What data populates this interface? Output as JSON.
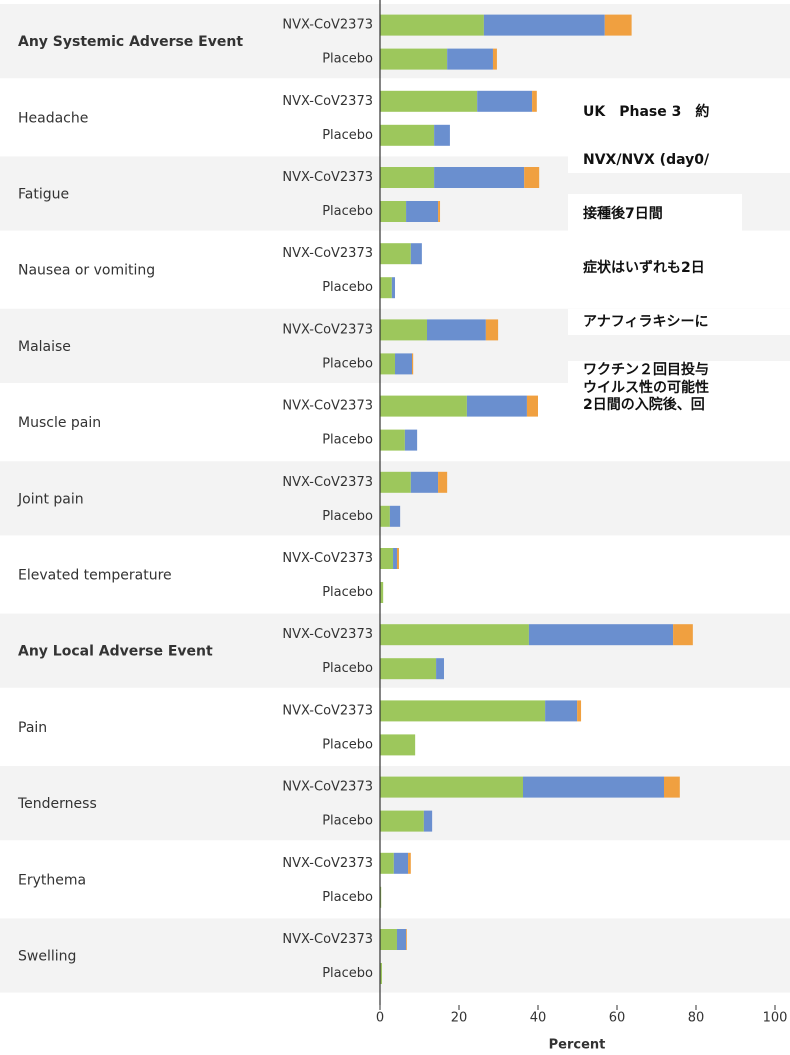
{
  "chart_data": {
    "type": "stacked-barh",
    "categories": [
      "Any Systemic Adverse Event",
      "Headache",
      "Fatigue",
      "Nausea or vomiting",
      "Malaise",
      "Muscle pain",
      "Joint pain",
      "Elevated temperature",
      "Any Local Adverse Event",
      "Pain",
      "Tenderness",
      "Erythema",
      "Swelling"
    ],
    "emphasized": [
      0,
      8
    ],
    "groups": [
      {
        "name": "NVX-CoV2373",
        "series": [
          {
            "color": "#9dc75c",
            "values": [
              26.3,
              24.6,
              13.7,
              7.8,
              11.9,
              22,
              7.8,
              3.3,
              37.7,
              41.8,
              36.2,
              3.5,
              4.3
            ]
          },
          {
            "color": "#6a8fcf",
            "values": [
              30.6,
              13.9,
              22.8,
              2.8,
              14.9,
              15.2,
              6.9,
              1.0,
              36.5,
              8.1,
              35.7,
              3.6,
              2.3
            ]
          },
          {
            "color": "#f0a040",
            "values": [
              6.8,
              1.2,
              3.8,
              0,
              3.1,
              2.8,
              2.3,
              0.5,
              5.0,
              1.0,
              4.0,
              0.7,
              0.2
            ]
          }
        ]
      },
      {
        "name": "Placebo",
        "series": [
          {
            "color": "#9dc75c",
            "values": [
              17,
              13.7,
              6.6,
              3,
              3.8,
              6.3,
              2.5,
              0.8,
              14.2,
              8.9,
              11.1,
              0.3,
              0.5
            ]
          },
          {
            "color": "#6a8fcf",
            "values": [
              11.6,
              4.0,
              8.1,
              0.8,
              4.3,
              3.1,
              2.6,
              0,
              2.0,
              0,
              2.1,
              0,
              0
            ]
          },
          {
            "color": "#f0a040",
            "values": [
              1.0,
              0,
              0.5,
              0,
              0.3,
              0,
              0,
              0,
              0,
              0,
              0,
              0,
              0
            ]
          }
        ]
      }
    ],
    "xlabel": "Percent",
    "xlim": [
      0,
      100
    ],
    "xticks": [
      0,
      20,
      40,
      60,
      80,
      100
    ],
    "annotations": [
      "UK　Phase 3　約",
      "NVX/NVX (day0/",
      "接種後7日間",
      "症状はいずれも2日",
      "アナフィラキシーに",
      "ワクチン２回目投与",
      "ウイルス性の可能性",
      "2日間の入院後、回"
    ]
  }
}
